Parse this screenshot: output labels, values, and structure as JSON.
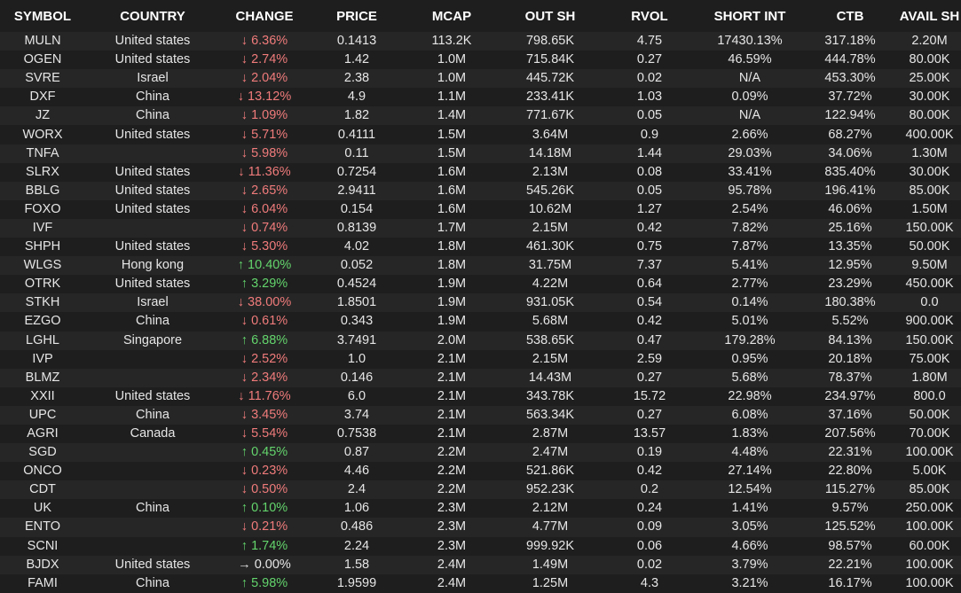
{
  "headers": [
    "SYMBOL",
    "COUNTRY",
    "CHANGE",
    "PRICE",
    "MCAP",
    "OUT SH",
    "RVOL",
    "SHORT INT",
    "CTB",
    "AVAIL SH"
  ],
  "colors": {
    "down": "#f07b7b",
    "up": "#63d46c",
    "flat": "#e6e6e6"
  },
  "rows": [
    {
      "symbol": "MULN",
      "country": "United states",
      "dir": "down",
      "change": "↓ 6.36%",
      "price": "0.1413",
      "mcap": "113.2K",
      "outsh": "798.65K",
      "rvol": "4.75",
      "shortint": "17430.13%",
      "ctb": "317.18%",
      "avail": "2.20M"
    },
    {
      "symbol": "OGEN",
      "country": "United states",
      "dir": "down",
      "change": "↓ 2.74%",
      "price": "1.42",
      "mcap": "1.0M",
      "outsh": "715.84K",
      "rvol": "0.27",
      "shortint": "46.59%",
      "ctb": "444.78%",
      "avail": "80.00K"
    },
    {
      "symbol": "SVRE",
      "country": "Israel",
      "dir": "down",
      "change": "↓ 2.04%",
      "price": "2.38",
      "mcap": "1.0M",
      "outsh": "445.72K",
      "rvol": "0.02",
      "shortint": "N/A",
      "ctb": "453.30%",
      "avail": "25.00K"
    },
    {
      "symbol": "DXF",
      "country": "China",
      "dir": "down",
      "change": "↓ 13.12%",
      "price": "4.9",
      "mcap": "1.1M",
      "outsh": "233.41K",
      "rvol": "1.03",
      "shortint": "0.09%",
      "ctb": "37.72%",
      "avail": "30.00K"
    },
    {
      "symbol": "JZ",
      "country": "China",
      "dir": "down",
      "change": "↓ 1.09%",
      "price": "1.82",
      "mcap": "1.4M",
      "outsh": "771.67K",
      "rvol": "0.05",
      "shortint": "N/A",
      "ctb": "122.94%",
      "avail": "80.00K"
    },
    {
      "symbol": "WORX",
      "country": "United states",
      "dir": "down",
      "change": "↓ 5.71%",
      "price": "0.4111",
      "mcap": "1.5M",
      "outsh": "3.64M",
      "rvol": "0.9",
      "shortint": "2.66%",
      "ctb": "68.27%",
      "avail": "400.00K"
    },
    {
      "symbol": "TNFA",
      "country": "",
      "dir": "down",
      "change": "↓ 5.98%",
      "price": "0.11",
      "mcap": "1.5M",
      "outsh": "14.18M",
      "rvol": "1.44",
      "shortint": "29.03%",
      "ctb": "34.06%",
      "avail": "1.30M"
    },
    {
      "symbol": "SLRX",
      "country": "United states",
      "dir": "down",
      "change": "↓ 11.36%",
      "price": "0.7254",
      "mcap": "1.6M",
      "outsh": "2.13M",
      "rvol": "0.08",
      "shortint": "33.41%",
      "ctb": "835.40%",
      "avail": "30.00K"
    },
    {
      "symbol": "BBLG",
      "country": "United states",
      "dir": "down",
      "change": "↓ 2.65%",
      "price": "2.9411",
      "mcap": "1.6M",
      "outsh": "545.26K",
      "rvol": "0.05",
      "shortint": "95.78%",
      "ctb": "196.41%",
      "avail": "85.00K"
    },
    {
      "symbol": "FOXO",
      "country": "United states",
      "dir": "down",
      "change": "↓ 6.04%",
      "price": "0.154",
      "mcap": "1.6M",
      "outsh": "10.62M",
      "rvol": "1.27",
      "shortint": "2.54%",
      "ctb": "46.06%",
      "avail": "1.50M"
    },
    {
      "symbol": "IVF",
      "country": "",
      "dir": "down",
      "change": "↓ 0.74%",
      "price": "0.8139",
      "mcap": "1.7M",
      "outsh": "2.15M",
      "rvol": "0.42",
      "shortint": "7.82%",
      "ctb": "25.16%",
      "avail": "150.00K"
    },
    {
      "symbol": "SHPH",
      "country": "United states",
      "dir": "down",
      "change": "↓ 5.30%",
      "price": "4.02",
      "mcap": "1.8M",
      "outsh": "461.30K",
      "rvol": "0.75",
      "shortint": "7.87%",
      "ctb": "13.35%",
      "avail": "50.00K"
    },
    {
      "symbol": "WLGS",
      "country": "Hong kong",
      "dir": "up",
      "change": "↑ 10.40%",
      "price": "0.052",
      "mcap": "1.8M",
      "outsh": "31.75M",
      "rvol": "7.37",
      "shortint": "5.41%",
      "ctb": "12.95%",
      "avail": "9.50M"
    },
    {
      "symbol": "OTRK",
      "country": "United states",
      "dir": "up",
      "change": "↑ 3.29%",
      "price": "0.4524",
      "mcap": "1.9M",
      "outsh": "4.22M",
      "rvol": "0.64",
      "shortint": "2.77%",
      "ctb": "23.29%",
      "avail": "450.00K"
    },
    {
      "symbol": "STKH",
      "country": "Israel",
      "dir": "down",
      "change": "↓ 38.00%",
      "price": "1.8501",
      "mcap": "1.9M",
      "outsh": "931.05K",
      "rvol": "0.54",
      "shortint": "0.14%",
      "ctb": "180.38%",
      "avail": "0.0"
    },
    {
      "symbol": "EZGO",
      "country": "China",
      "dir": "down",
      "change": "↓ 0.61%",
      "price": "0.343",
      "mcap": "1.9M",
      "outsh": "5.68M",
      "rvol": "0.42",
      "shortint": "5.01%",
      "ctb": "5.52%",
      "avail": "900.00K"
    },
    {
      "symbol": "LGHL",
      "country": "Singapore",
      "dir": "up",
      "change": "↑ 6.88%",
      "price": "3.7491",
      "mcap": "2.0M",
      "outsh": "538.65K",
      "rvol": "0.47",
      "shortint": "179.28%",
      "ctb": "84.13%",
      "avail": "150.00K"
    },
    {
      "symbol": "IVP",
      "country": "",
      "dir": "down",
      "change": "↓ 2.52%",
      "price": "1.0",
      "mcap": "2.1M",
      "outsh": "2.15M",
      "rvol": "2.59",
      "shortint": "0.95%",
      "ctb": "20.18%",
      "avail": "75.00K"
    },
    {
      "symbol": "BLMZ",
      "country": "",
      "dir": "down",
      "change": "↓ 2.34%",
      "price": "0.146",
      "mcap": "2.1M",
      "outsh": "14.43M",
      "rvol": "0.27",
      "shortint": "5.68%",
      "ctb": "78.37%",
      "avail": "1.80M"
    },
    {
      "symbol": "XXII",
      "country": "United states",
      "dir": "down",
      "change": "↓ 11.76%",
      "price": "6.0",
      "mcap": "2.1M",
      "outsh": "343.78K",
      "rvol": "15.72",
      "shortint": "22.98%",
      "ctb": "234.97%",
      "avail": "800.0"
    },
    {
      "symbol": "UPC",
      "country": "China",
      "dir": "down",
      "change": "↓ 3.45%",
      "price": "3.74",
      "mcap": "2.1M",
      "outsh": "563.34K",
      "rvol": "0.27",
      "shortint": "6.08%",
      "ctb": "37.16%",
      "avail": "50.00K"
    },
    {
      "symbol": "AGRI",
      "country": "Canada",
      "dir": "down",
      "change": "↓ 5.54%",
      "price": "0.7538",
      "mcap": "2.1M",
      "outsh": "2.87M",
      "rvol": "13.57",
      "shortint": "1.83%",
      "ctb": "207.56%",
      "avail": "70.00K"
    },
    {
      "symbol": "SGD",
      "country": "",
      "dir": "up",
      "change": "↑ 0.45%",
      "price": "0.87",
      "mcap": "2.2M",
      "outsh": "2.47M",
      "rvol": "0.19",
      "shortint": "4.48%",
      "ctb": "22.31%",
      "avail": "100.00K"
    },
    {
      "symbol": "ONCO",
      "country": "",
      "dir": "down",
      "change": "↓ 0.23%",
      "price": "4.46",
      "mcap": "2.2M",
      "outsh": "521.86K",
      "rvol": "0.42",
      "shortint": "27.14%",
      "ctb": "22.80%",
      "avail": "5.00K"
    },
    {
      "symbol": "CDT",
      "country": "",
      "dir": "down",
      "change": "↓ 0.50%",
      "price": "2.4",
      "mcap": "2.2M",
      "outsh": "952.23K",
      "rvol": "0.2",
      "shortint": "12.54%",
      "ctb": "115.27%",
      "avail": "85.00K"
    },
    {
      "symbol": "UK",
      "country": "China",
      "dir": "up",
      "change": "↑ 0.10%",
      "price": "1.06",
      "mcap": "2.3M",
      "outsh": "2.12M",
      "rvol": "0.24",
      "shortint": "1.41%",
      "ctb": "9.57%",
      "avail": "250.00K"
    },
    {
      "symbol": "ENTO",
      "country": "",
      "dir": "down",
      "change": "↓ 0.21%",
      "price": "0.486",
      "mcap": "2.3M",
      "outsh": "4.77M",
      "rvol": "0.09",
      "shortint": "3.05%",
      "ctb": "125.52%",
      "avail": "100.00K"
    },
    {
      "symbol": "SCNI",
      "country": "",
      "dir": "up",
      "change": "↑ 1.74%",
      "price": "2.24",
      "mcap": "2.3M",
      "outsh": "999.92K",
      "rvol": "0.06",
      "shortint": "4.66%",
      "ctb": "98.57%",
      "avail": "60.00K"
    },
    {
      "symbol": "BJDX",
      "country": "United states",
      "dir": "flat",
      "change": "→ 0.00%",
      "price": "1.58",
      "mcap": "2.4M",
      "outsh": "1.49M",
      "rvol": "0.02",
      "shortint": "3.79%",
      "ctb": "22.21%",
      "avail": "100.00K"
    },
    {
      "symbol": "FAMI",
      "country": "China",
      "dir": "up",
      "change": "↑ 5.98%",
      "price": "1.9599",
      "mcap": "2.4M",
      "outsh": "1.25M",
      "rvol": "4.3",
      "shortint": "3.21%",
      "ctb": "16.17%",
      "avail": "100.00K"
    }
  ]
}
